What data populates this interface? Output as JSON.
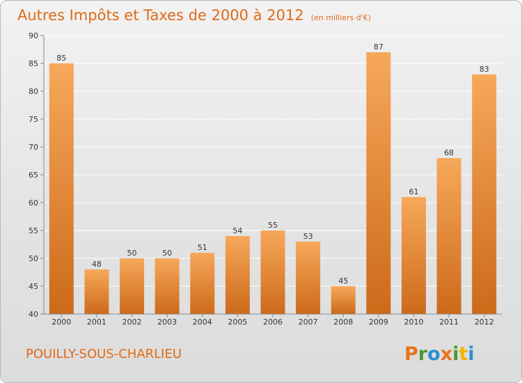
{
  "chart_data": {
    "type": "bar",
    "title": "Autres Impôts et Taxes de 2000 à 2012",
    "subtitle": "(en milliers d'€)",
    "xlabel": "",
    "ylabel": "",
    "categories": [
      "2000",
      "2001",
      "2002",
      "2003",
      "2004",
      "2005",
      "2006",
      "2007",
      "2008",
      "2009",
      "2010",
      "2011",
      "2012"
    ],
    "values": [
      85,
      48,
      50,
      50,
      51,
      54,
      55,
      53,
      45,
      87,
      61,
      68,
      83
    ],
    "data_labels": [
      "85",
      "48",
      "50",
      "50",
      "51",
      "54",
      "55",
      "53",
      "45",
      "87",
      "61",
      "68",
      "83"
    ],
    "ylim": [
      40,
      90
    ],
    "yticks": [
      "40",
      "45",
      "50",
      "55",
      "60",
      "65",
      "70",
      "75",
      "80",
      "85",
      "90"
    ],
    "grid": true,
    "bar_color_top": "#f7a85a",
    "bar_color_bottom": "#cc6a1a"
  },
  "commune": "POUILLY-SOUS-CHARLIEU",
  "logo": {
    "letters": [
      "P",
      "r",
      "o",
      "x",
      "i",
      "t",
      "i"
    ],
    "colors": [
      "#e8731c",
      "#4a9a2a",
      "#2a8fd4",
      "#e8731c",
      "#4a9a2a",
      "#f0b400",
      "#2a8fd4"
    ]
  }
}
